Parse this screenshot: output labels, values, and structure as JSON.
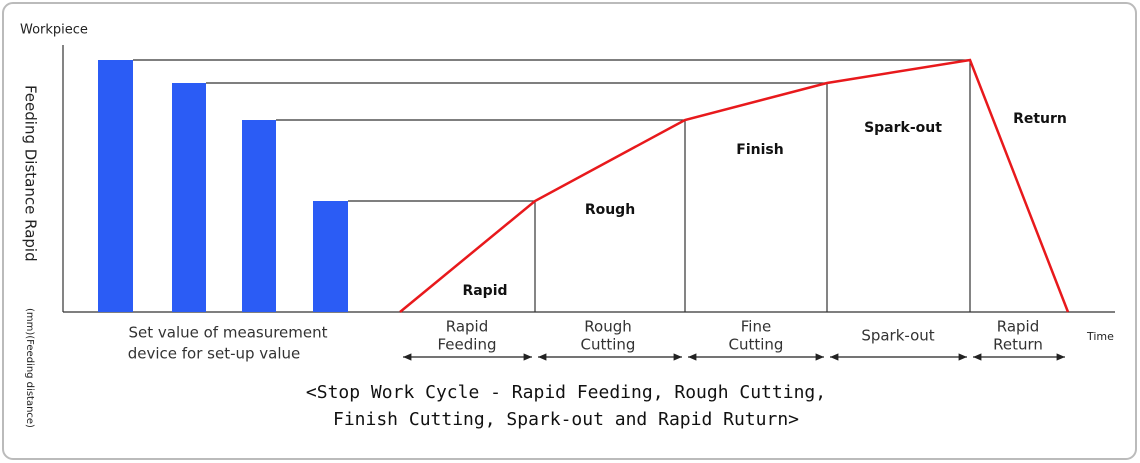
{
  "axis": {
    "workpiece": "Workpiece",
    "y_label": "Feeding Distance  Rapid",
    "y_unit": "(mm)(Feeding distance)",
    "time": "Time"
  },
  "setup_note": [
    "Set value of measurement",
    "device for set-up value"
  ],
  "regions": [
    "Rapid",
    "Rough",
    "Finish",
    "Spark-out",
    "Return"
  ],
  "phases": [
    [
      "Rapid",
      "Feeding"
    ],
    [
      "Rough",
      "Cutting"
    ],
    [
      "Fine",
      "Cutting"
    ],
    [
      "Spark-out"
    ],
    [
      "Rapid",
      "Return"
    ]
  ],
  "caption": [
    "<Stop Work Cycle - Rapid Feeding, Rough Cutting,",
    "Finish Cutting, Spark-out and Rapid Ruturn>"
  ]
}
